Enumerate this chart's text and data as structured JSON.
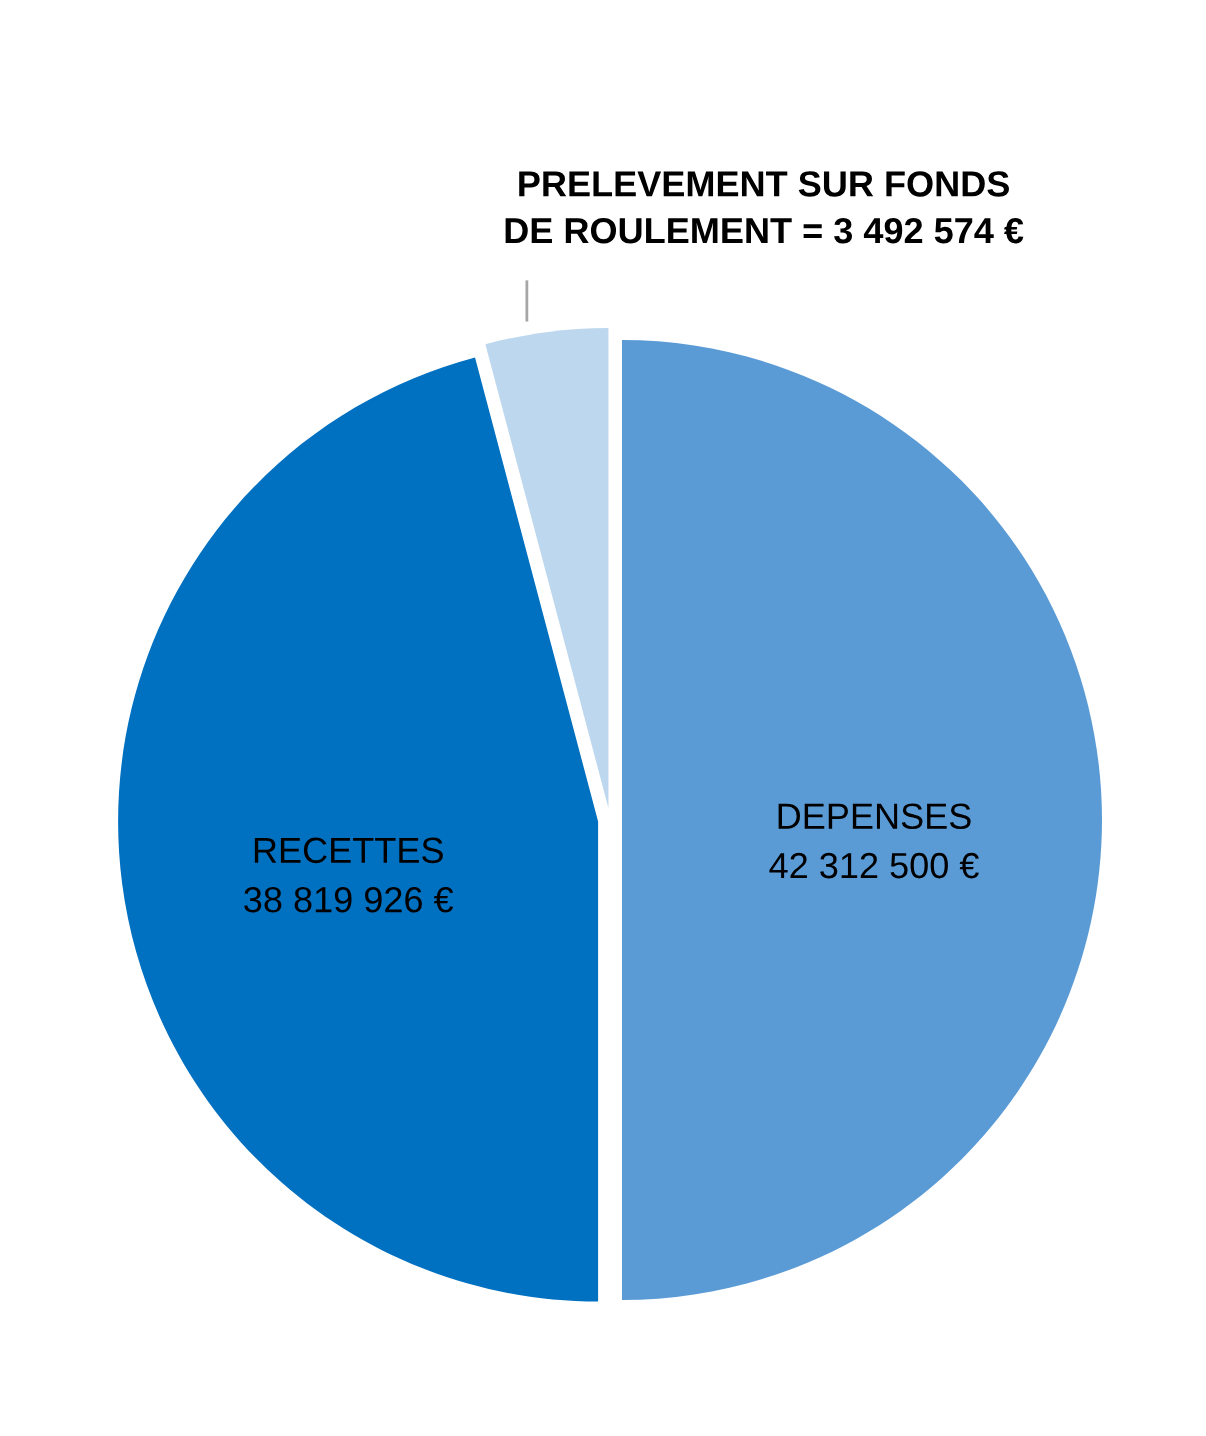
{
  "chart_data": {
    "type": "pie",
    "categories": [
      "DEPENSES",
      "RECETTES",
      "PRELEVEMENT SUR FONDS DE ROULEMENT"
    ],
    "values": [
      42312500,
      38819926,
      3492574
    ],
    "value_labels": [
      "42 312 500 €",
      "38 819 926 €",
      "= 3 492 574 €"
    ],
    "colors": [
      "#5b9bd5",
      "#0070c0",
      "#bdd7ee"
    ],
    "legend": false
  }
}
